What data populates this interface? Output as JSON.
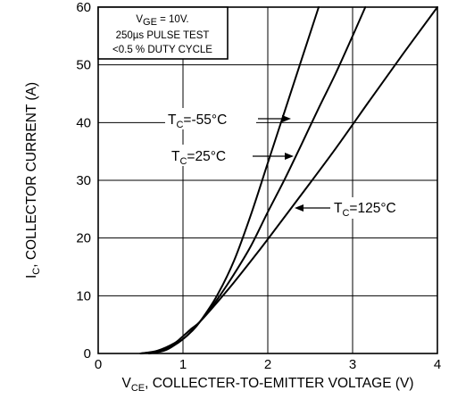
{
  "chart_data": {
    "type": "line",
    "x_axis": {
      "label_main": "V",
      "label_sub": "CE",
      "label_rest": ", COLLECTER-TO-EMITTER VOLTAGE (V)",
      "min": 0,
      "max": 4,
      "ticks": [
        "0",
        "1",
        "2",
        "3",
        "4"
      ]
    },
    "y_axis": {
      "label_main": "I",
      "label_sub": "C",
      "label_rest": ", COLLECTOR CURRENT (A)",
      "min": 0,
      "max": 60,
      "ticks": [
        "0",
        "10",
        "20",
        "30",
        "40",
        "50",
        "60"
      ]
    },
    "grid": true,
    "note": {
      "line1_main": "V",
      "line1_sub": "GE",
      "line1_rest": " = 10V.",
      "line2": "250µs PULSE TEST",
      "line3": "<0.5 % DUTY CYCLE"
    },
    "series": [
      {
        "name_main": "T",
        "name_sub": "C",
        "name_rest": "=-55°C",
        "x": [
          0.5,
          0.7,
          0.9,
          1.0,
          1.1,
          1.2,
          1.4,
          1.6,
          1.8,
          2.0,
          2.2,
          2.4,
          2.6
        ],
        "y": [
          0,
          0.4,
          1.5,
          2.5,
          3.8,
          5.5,
          10,
          16,
          24,
          33,
          42,
          51,
          60
        ]
      },
      {
        "name_main": "T",
        "name_sub": "C",
        "name_rest": "=25°C",
        "x": [
          0.6,
          0.8,
          1.0,
          1.1,
          1.2,
          1.4,
          1.6,
          1.8,
          2.0,
          2.2,
          2.4,
          2.6,
          2.8,
          3.0,
          3.15
        ],
        "y": [
          0,
          0.6,
          2.5,
          3.9,
          5.5,
          9.3,
          13.7,
          18.6,
          24.5,
          30.2,
          36.3,
          42.5,
          48.5,
          55,
          60
        ]
      },
      {
        "name_main": "T",
        "name_sub": "C",
        "name_rest": "=125°C",
        "x": [
          0.5,
          0.7,
          0.9,
          1.0,
          1.1,
          1.2,
          1.4,
          1.6,
          1.8,
          2.0,
          2.4,
          2.8,
          3.2,
          3.6,
          4.0
        ],
        "y": [
          0,
          0.5,
          1.8,
          3.0,
          4.3,
          5.5,
          8.8,
          12.3,
          16.0,
          19.8,
          27.6,
          35.5,
          43.8,
          52,
          60
        ]
      }
    ]
  }
}
